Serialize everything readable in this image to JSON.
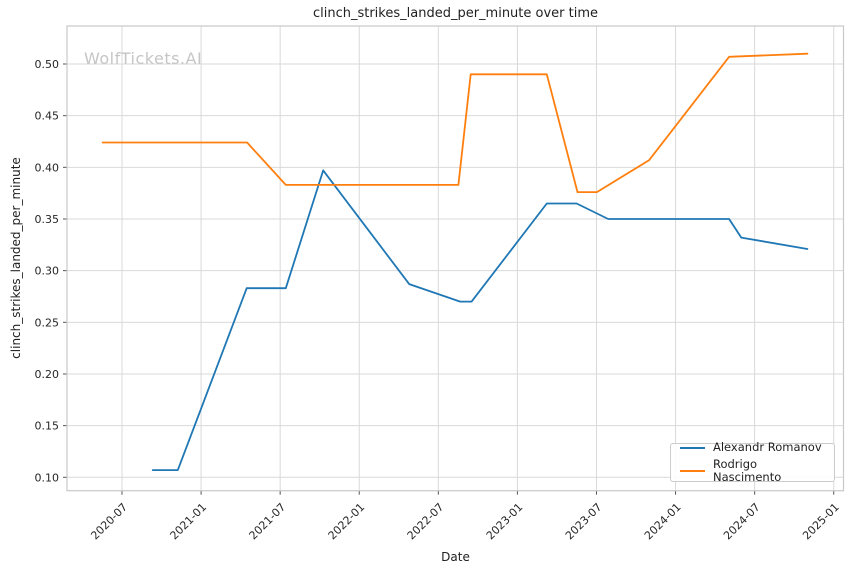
{
  "figure": {
    "title": "clinch_strikes_landed_per_minute over time",
    "watermark": "WolfTickets.AI",
    "xlabel": "Date",
    "ylabel": "clinch_strikes_landed_per_minute"
  },
  "chart_data": {
    "type": "line",
    "title": "clinch_strikes_landed_per_minute over time",
    "xlabel": "Date",
    "ylabel": "clinch_strikes_landed_per_minute",
    "grid": true,
    "legend_position": "lower right",
    "x_tick_labels": [
      "2020-07",
      "2021-01",
      "2021-07",
      "2022-01",
      "2022-07",
      "2023-01",
      "2023-07",
      "2024-01",
      "2024-07",
      "2025-01"
    ],
    "y_ticks": [
      0.1,
      0.15,
      0.2,
      0.25,
      0.3,
      0.35,
      0.4,
      0.45,
      0.5
    ],
    "ylim": [
      0.087,
      0.537
    ],
    "xlim": [
      "2020-02-22",
      "2025-01-23"
    ],
    "colors": {
      "grid": "#d9d9d9",
      "spine": "#c9c9c9",
      "text": "#262626",
      "watermark": "#c6c6c6"
    },
    "series": [
      {
        "name": "Alexandr Romanov",
        "color": "#1f77b4",
        "points": [
          [
            "2020-09-11",
            0.107
          ],
          [
            "2020-11-08",
            0.107
          ],
          [
            "2021-04-15",
            0.283
          ],
          [
            "2021-07-14",
            0.283
          ],
          [
            "2021-10-09",
            0.397
          ],
          [
            "2022-04-25",
            0.287
          ],
          [
            "2022-08-21",
            0.27
          ],
          [
            "2022-09-17",
            0.27
          ],
          [
            "2023-03-08",
            0.365
          ],
          [
            "2023-05-16",
            0.365
          ],
          [
            "2023-07-28",
            0.35
          ],
          [
            "2024-05-03",
            0.35
          ],
          [
            "2024-05-31",
            0.332
          ],
          [
            "2024-11-01",
            0.321
          ]
        ]
      },
      {
        "name": "Rodrigo Nascimento",
        "color": "#ff7f0e",
        "points": [
          [
            "2020-05-17",
            0.424
          ],
          [
            "2021-04-16",
            0.424
          ],
          [
            "2021-07-14",
            0.383
          ],
          [
            "2022-08-17",
            0.383
          ],
          [
            "2022-09-15",
            0.49
          ],
          [
            "2023-03-08",
            0.49
          ],
          [
            "2023-05-18",
            0.376
          ],
          [
            "2023-07-02",
            0.376
          ],
          [
            "2023-11-01",
            0.407
          ],
          [
            "2024-05-03",
            0.507
          ],
          [
            "2024-11-01",
            0.51
          ]
        ]
      }
    ]
  }
}
